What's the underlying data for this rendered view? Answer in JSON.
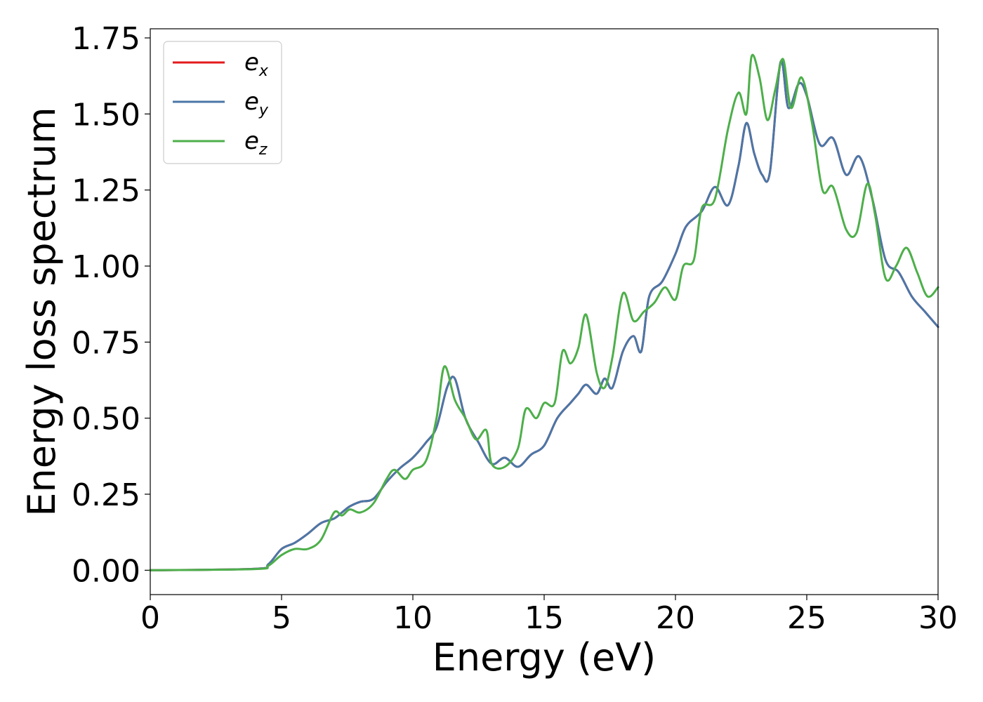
{
  "chart_data": {
    "type": "line",
    "xlabel": "Energy (eV)",
    "ylabel": "Energy loss spectrum",
    "xlim": [
      0,
      30
    ],
    "ylim": [
      -0.08,
      1.78
    ],
    "xticks": [
      0,
      5,
      10,
      15,
      20,
      25,
      30
    ],
    "yticks": [
      0.0,
      0.25,
      0.5,
      0.75,
      1.0,
      1.25,
      1.5,
      1.75
    ],
    "xtick_labels": [
      "0",
      "5",
      "10",
      "15",
      "20",
      "25",
      "30"
    ],
    "ytick_labels": [
      "0.00",
      "0.25",
      "0.50",
      "0.75",
      "1.00",
      "1.25",
      "1.50",
      "1.75"
    ],
    "grid": false,
    "legend_position": "top-left",
    "series": [
      {
        "name": "e_x",
        "legend_base": "e",
        "legend_sub": "x",
        "color": "#e41a1c",
        "x": [
          0,
          4,
          4.5,
          5,
          5.5,
          6,
          6.5,
          7,
          7.3,
          7.6,
          8,
          8.5,
          9,
          9.5,
          10,
          10.5,
          10.9,
          11.3,
          11.6,
          12,
          12.5,
          13,
          13.5,
          14,
          14.5,
          15,
          15.5,
          16,
          16.3,
          16.6,
          17,
          17.3,
          17.6,
          18,
          18.4,
          18.7,
          19,
          19.5,
          20,
          20.4,
          21,
          21.5,
          22,
          22.4,
          22.7,
          23,
          23.3,
          23.6,
          24,
          24.3,
          24.7,
          25,
          25.5,
          26,
          26.5,
          27,
          27.5,
          28,
          28.5,
          29,
          29.5,
          30
        ],
        "y": [
          0.0,
          0.005,
          0.02,
          0.07,
          0.09,
          0.12,
          0.155,
          0.17,
          0.19,
          0.21,
          0.225,
          0.235,
          0.29,
          0.335,
          0.37,
          0.42,
          0.47,
          0.6,
          0.63,
          0.5,
          0.42,
          0.35,
          0.37,
          0.34,
          0.38,
          0.41,
          0.5,
          0.55,
          0.58,
          0.61,
          0.58,
          0.63,
          0.6,
          0.72,
          0.77,
          0.72,
          0.9,
          0.95,
          1.04,
          1.13,
          1.18,
          1.26,
          1.2,
          1.33,
          1.47,
          1.37,
          1.3,
          1.31,
          1.67,
          1.52,
          1.6,
          1.56,
          1.4,
          1.42,
          1.3,
          1.36,
          1.22,
          1.02,
          0.98,
          0.9,
          0.85,
          0.8
        ]
      },
      {
        "name": "e_y",
        "legend_base": "e",
        "legend_sub": "y",
        "color": "#4a77a8",
        "x": [
          0,
          4,
          4.5,
          5,
          5.5,
          6,
          6.5,
          7,
          7.3,
          7.6,
          8,
          8.5,
          9,
          9.5,
          10,
          10.5,
          10.9,
          11.3,
          11.6,
          12,
          12.5,
          13,
          13.5,
          14,
          14.5,
          15,
          15.5,
          16,
          16.3,
          16.6,
          17,
          17.3,
          17.6,
          18,
          18.4,
          18.7,
          19,
          19.5,
          20,
          20.4,
          21,
          21.5,
          22,
          22.4,
          22.7,
          23,
          23.3,
          23.6,
          24,
          24.3,
          24.7,
          25,
          25.5,
          26,
          26.5,
          27,
          27.5,
          28,
          28.5,
          29,
          29.5,
          30
        ],
        "y": [
          0.0,
          0.005,
          0.02,
          0.07,
          0.09,
          0.12,
          0.155,
          0.17,
          0.19,
          0.21,
          0.225,
          0.235,
          0.29,
          0.335,
          0.37,
          0.42,
          0.47,
          0.6,
          0.63,
          0.5,
          0.42,
          0.35,
          0.37,
          0.34,
          0.38,
          0.41,
          0.5,
          0.55,
          0.58,
          0.61,
          0.58,
          0.63,
          0.6,
          0.72,
          0.77,
          0.72,
          0.9,
          0.95,
          1.04,
          1.13,
          1.18,
          1.26,
          1.2,
          1.33,
          1.47,
          1.37,
          1.3,
          1.31,
          1.67,
          1.52,
          1.6,
          1.56,
          1.4,
          1.42,
          1.3,
          1.36,
          1.22,
          1.02,
          0.98,
          0.9,
          0.85,
          0.8
        ]
      },
      {
        "name": "e_z",
        "legend_base": "e",
        "legend_sub": "z",
        "color": "#4daf4a",
        "x": [
          0,
          4,
          4.5,
          5,
          5.5,
          6,
          6.5,
          7,
          7.3,
          7.6,
          8,
          8.5,
          9,
          9.3,
          9.7,
          10,
          10.5,
          10.9,
          11.2,
          11.6,
          12,
          12.4,
          12.8,
          13,
          13.5,
          14,
          14.3,
          14.7,
          15,
          15.4,
          15.7,
          16,
          16.3,
          16.6,
          17,
          17.3,
          17.6,
          18,
          18.4,
          18.8,
          19.2,
          19.6,
          20,
          20.3,
          20.7,
          21,
          21.5,
          22,
          22.4,
          22.7,
          22.9,
          23.2,
          23.5,
          23.8,
          24.1,
          24.4,
          24.8,
          25.2,
          25.6,
          26,
          26.5,
          26.9,
          27.3,
          27.6,
          28,
          28.4,
          28.8,
          29.2,
          29.6,
          30
        ],
        "y": [
          0.0,
          0.004,
          0.015,
          0.05,
          0.07,
          0.07,
          0.1,
          0.19,
          0.18,
          0.2,
          0.19,
          0.22,
          0.3,
          0.33,
          0.3,
          0.33,
          0.36,
          0.5,
          0.67,
          0.56,
          0.5,
          0.43,
          0.46,
          0.35,
          0.34,
          0.4,
          0.53,
          0.5,
          0.55,
          0.55,
          0.72,
          0.68,
          0.73,
          0.84,
          0.65,
          0.6,
          0.7,
          0.91,
          0.82,
          0.85,
          0.88,
          0.93,
          0.89,
          1.0,
          1.02,
          1.19,
          1.22,
          1.45,
          1.57,
          1.5,
          1.69,
          1.62,
          1.48,
          1.58,
          1.68,
          1.52,
          1.62,
          1.47,
          1.25,
          1.26,
          1.12,
          1.11,
          1.27,
          1.17,
          0.96,
          1.0,
          1.06,
          0.98,
          0.9,
          0.93
        ]
      }
    ]
  }
}
